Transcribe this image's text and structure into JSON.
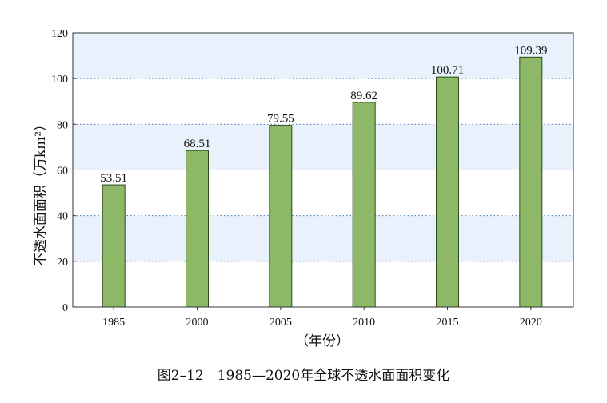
{
  "chart_data": {
    "type": "bar",
    "categories": [
      "1985",
      "2000",
      "2005",
      "2010",
      "2015",
      "2020"
    ],
    "values": [
      53.51,
      68.51,
      79.55,
      89.62,
      100.71,
      109.39
    ],
    "value_labels": [
      "53.51",
      "68.51",
      "79.55",
      "89.62",
      "100.71",
      "109.39"
    ],
    "ylabel": "不透水面面积（万km²）",
    "xlabel": "（年份）",
    "ylim": [
      0,
      120
    ],
    "yticks": [
      0,
      20,
      40,
      60,
      80,
      100,
      120
    ],
    "grid": true,
    "legend": "none"
  },
  "caption": "图2–12　1985—2020年全球不透水面面积变化",
  "colors": {
    "bar_fill": "#8db868",
    "bar_stroke": "#2f4a1c",
    "band_fill": "#e9f2fc",
    "grid": "#4a7ab0"
  }
}
